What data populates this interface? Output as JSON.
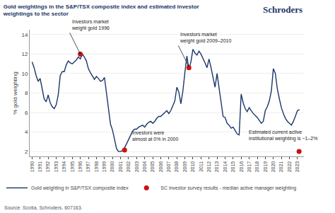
{
  "chart_data": {
    "type": "line",
    "title": "Gold weightings in the S&P/TSX composite index and estimated investor\nweightings to the sector",
    "logo": "Schroders",
    "source": "Source: Scotia, Schroders. 607163.",
    "ylabel": "% gold weighting",
    "xlim": [
      1989.7,
      2023.8
    ],
    "xticks": [
      1990,
      1991,
      1992,
      1993,
      1994,
      1995,
      1996,
      1997,
      1998,
      1999,
      2000,
      2001,
      2002,
      2003,
      2004,
      2005,
      2006,
      2007,
      2008,
      2009,
      2010,
      2011,
      2012,
      2013,
      2014,
      2015,
      2016,
      2017,
      2018,
      2019,
      2020,
      2021,
      2022,
      2023
    ],
    "ylim": [
      1.5,
      14.5
    ],
    "yticks": [
      2,
      4,
      6,
      8,
      10,
      12,
      14
    ],
    "grid": "y",
    "legend": "bottom",
    "series": [
      {
        "name": "Gold weighting in S&P/TSX composite index",
        "type": "line",
        "color": "#1b3668",
        "x": [
          1990.0,
          1990.25,
          1990.5,
          1990.75,
          1991.0,
          1991.25,
          1991.5,
          1991.75,
          1992.0,
          1992.25,
          1992.5,
          1992.75,
          1993.0,
          1993.25,
          1993.5,
          1993.75,
          1994.0,
          1994.25,
          1994.5,
          1994.75,
          1995.0,
          1995.25,
          1995.5,
          1995.75,
          1996.0,
          1996.25,
          1996.5,
          1996.75,
          1997.0,
          1997.25,
          1997.5,
          1997.75,
          1998.0,
          1998.25,
          1998.5,
          1998.75,
          1999.0,
          1999.25,
          1999.5,
          1999.75,
          2000.0,
          2000.25,
          2000.5,
          2000.75,
          2001.0,
          2001.25,
          2001.5,
          2001.75,
          2002.0,
          2002.25,
          2002.5,
          2002.75,
          2003.0,
          2003.25,
          2003.5,
          2003.75,
          2004.0,
          2004.25,
          2004.5,
          2004.75,
          2005.0,
          2005.25,
          2005.5,
          2005.75,
          2006.0,
          2006.25,
          2006.5,
          2006.75,
          2007.0,
          2007.25,
          2007.5,
          2007.75,
          2008.0,
          2008.25,
          2008.5,
          2008.75,
          2009.0,
          2009.25,
          2009.5,
          2009.75,
          2010.0,
          2010.25,
          2010.5,
          2010.75,
          2011.0,
          2011.25,
          2011.5,
          2011.75,
          2012.0,
          2012.25,
          2012.5,
          2012.75,
          2013.0,
          2013.25,
          2013.5,
          2013.75,
          2014.0,
          2014.25,
          2014.5,
          2014.75,
          2015.0,
          2015.25,
          2015.5,
          2015.75,
          2016.0,
          2016.25,
          2016.5,
          2016.75,
          2017.0,
          2017.25,
          2017.5,
          2017.75,
          2018.0,
          2018.25,
          2018.5,
          2018.75,
          2019.0,
          2019.25,
          2019.5,
          2019.75,
          2020.0,
          2020.25,
          2020.5,
          2020.75,
          2021.0,
          2021.25,
          2021.5,
          2021.75,
          2022.0,
          2022.25,
          2022.5,
          2022.75,
          2023.0,
          2023.25
        ],
        "values": [
          11.2,
          10.6,
          9.8,
          9.2,
          9.5,
          8.4,
          7.4,
          7.1,
          7.8,
          7.0,
          6.6,
          6.4,
          6.8,
          7.8,
          9.8,
          10.2,
          10.2,
          10.9,
          11.3,
          11.1,
          11.0,
          11.2,
          11.4,
          11.7,
          11.5,
          12.0,
          11.7,
          11.3,
          10.5,
          10.1,
          9.7,
          9.4,
          9.7,
          9.5,
          9.2,
          9.3,
          9.6,
          8.0,
          6.2,
          4.8,
          4.2,
          3.3,
          2.3,
          2.0,
          2.0,
          2.1,
          2.4,
          2.8,
          3.2,
          3.7,
          4.1,
          4.3,
          4.3,
          4.5,
          4.6,
          4.7,
          4.5,
          4.8,
          5.0,
          5.1,
          4.9,
          5.1,
          5.4,
          5.6,
          5.6,
          5.8,
          6.0,
          6.2,
          5.9,
          6.2,
          6.7,
          7.2,
          8.6,
          8.1,
          6.9,
          8.2,
          10.1,
          11.8,
          10.4,
          11.2,
          12.5,
          12.1,
          11.9,
          12.3,
          12.0,
          11.6,
          11.1,
          10.6,
          11.5,
          10.6,
          9.6,
          8.6,
          10.0,
          8.4,
          6.8,
          5.6,
          5.5,
          4.9,
          4.7,
          4.4,
          4.5,
          4.1,
          3.8,
          3.7,
          7.9,
          7.0,
          6.4,
          6.1,
          6.5,
          6.2,
          5.9,
          5.7,
          5.5,
          5.2,
          4.9,
          5.1,
          6.2,
          6.6,
          7.2,
          8.2,
          10.5,
          10.0,
          8.4,
          7.4,
          6.5,
          5.9,
          5.4,
          5.1,
          4.9,
          4.7,
          5.1,
          5.7,
          6.2,
          6.3
        ]
      },
      {
        "name": "SC investor survey results - median active manager weighting",
        "type": "scatter",
        "marker": "circle",
        "color": "#cc1111",
        "x": [
          1996.0,
          2001.5,
          2009.5,
          2023.2
        ],
        "values": [
          12.0,
          2.15,
          10.6,
          2.0
        ]
      }
    ],
    "annotations": [
      {
        "text": "Investors market\nweight gold 1996",
        "x": 1996.0,
        "y": 12.0,
        "arrow": true
      },
      {
        "text": "Investors market\nweight gold 2009–2010",
        "x": 2009.5,
        "y": 10.7,
        "arrow": true
      },
      {
        "text": "Investors were\nalmost at 0% in 2000",
        "x": 2002.3,
        "y": 2.9,
        "arrow": false
      },
      {
        "text": "Estimated current active\ninstitutional weighting is ~1–2%",
        "x": 2016.8,
        "y": 2.9,
        "arrow": false
      }
    ]
  }
}
